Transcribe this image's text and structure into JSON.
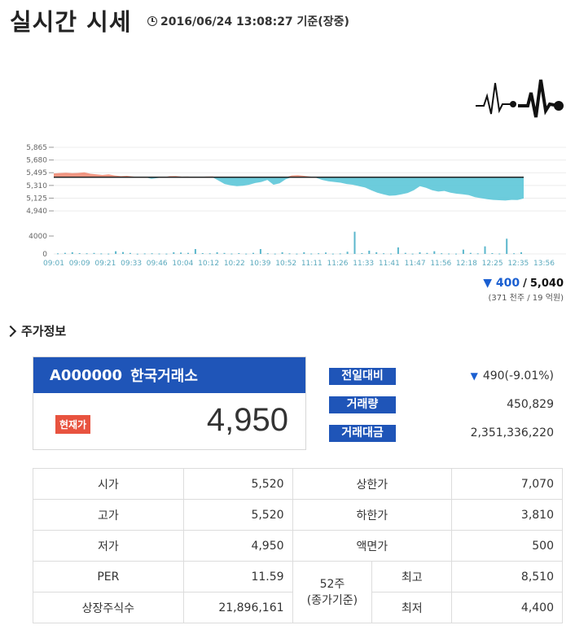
{
  "header": {
    "title": "실시간 시세",
    "timestamp": "2016/06/24 13:08:27 기준(장중)"
  },
  "colors": {
    "accent": "#1f55b8",
    "down": "#1a5fd1",
    "up_fill": "#f08a73",
    "down_fill": "#5cc6d8",
    "badge": "#e8533f"
  },
  "chart_data": {
    "type": "area",
    "title": "",
    "reference_price": 5430,
    "ylim": [
      4870,
      5900
    ],
    "y_ticks": [
      "5,865",
      "5,680",
      "5,495",
      "5,310",
      "5,125",
      "4,940"
    ],
    "volume_tick": "4000",
    "volume_zero": "0",
    "x_ticks": [
      "09:01",
      "09:09",
      "09:21",
      "09:33",
      "09:46",
      "10:04",
      "10:12",
      "10:22",
      "10:39",
      "10:52",
      "11:11",
      "11:26",
      "11:33",
      "11:41",
      "11:47",
      "11:56",
      "12:18",
      "12:25",
      "12:35",
      "13:56"
    ],
    "price_series": [
      5485,
      5490,
      5495,
      5488,
      5492,
      5500,
      5480,
      5470,
      5462,
      5470,
      5455,
      5445,
      5450,
      5440,
      5432,
      5435,
      5405,
      5418,
      5430,
      5445,
      5448,
      5438,
      5440,
      5432,
      5436,
      5440,
      5442,
      5380,
      5330,
      5310,
      5300,
      5305,
      5320,
      5345,
      5360,
      5390,
      5320,
      5340,
      5400,
      5455,
      5460,
      5450,
      5440,
      5420,
      5390,
      5370,
      5360,
      5350,
      5330,
      5320,
      5300,
      5280,
      5240,
      5205,
      5180,
      5160,
      5165,
      5180,
      5200,
      5240,
      5300,
      5275,
      5240,
      5220,
      5230,
      5205,
      5190,
      5180,
      5170,
      5140,
      5125,
      5110,
      5100,
      5095,
      5090,
      5100,
      5098,
      5120
    ],
    "volume_series": [
      100,
      200,
      300,
      150,
      120,
      180,
      90,
      60,
      500,
      350,
      180,
      40,
      90,
      120,
      80,
      60,
      300,
      250,
      200,
      900,
      150,
      120,
      300,
      180,
      80,
      150,
      60,
      200,
      900,
      120,
      60,
      300,
      100,
      60,
      300,
      80,
      120,
      250,
      60,
      90,
      400,
      4100,
      150,
      600,
      300,
      120,
      80,
      1200,
      200,
      60,
      300,
      180,
      500,
      120,
      80,
      60,
      800,
      200,
      100,
      1400,
      150,
      80,
      2800,
      120,
      300
    ],
    "last_change": "400",
    "last_price": "5,040",
    "volume_summary": "(371 천주 / 19 억원)"
  },
  "stock_section": {
    "heading": "주가정보",
    "code": "A000000",
    "name": "한국거래소",
    "badge": "현재가",
    "current_price": "4,950",
    "stats": [
      {
        "label": "전일대비",
        "value": "490(-9.01%)"
      },
      {
        "label": "거래량",
        "value": "450,829"
      },
      {
        "label": "거래대금",
        "value": "2,351,336,220"
      }
    ]
  },
  "table": {
    "open_label": "시가",
    "open": "5,520",
    "upper_limit_label": "상한가",
    "upper_limit": "7,070",
    "high_label": "고가",
    "high": "5,520",
    "lower_limit_label": "하한가",
    "lower_limit": "3,810",
    "low_label": "저가",
    "low": "4,950",
    "par_label": "액면가",
    "par": "500",
    "per_label": "PER",
    "per": "11.59",
    "week52_label": "52주\n(종가기준)",
    "week52_high_label": "최고",
    "week52_high": "8,510",
    "listed_label": "상장주식수",
    "listed": "21,896,161",
    "week52_low_label": "최저",
    "week52_low": "4,400"
  }
}
